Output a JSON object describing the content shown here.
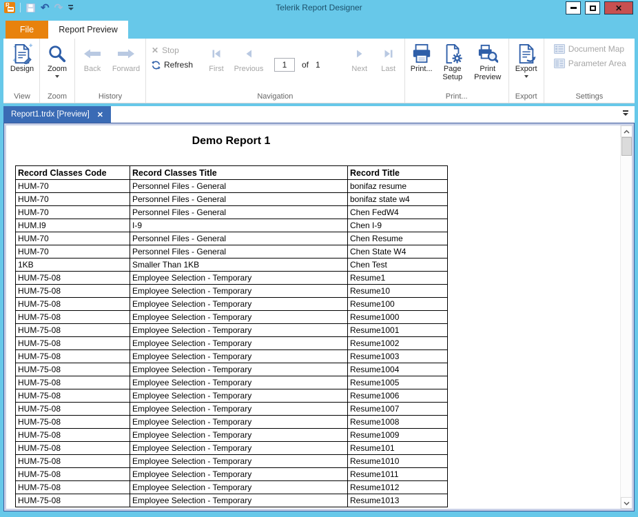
{
  "window": {
    "title": "Telerik Report Designer"
  },
  "icons": {
    "app_letter": "R",
    "undo": "↶",
    "redo": "↷",
    "close": "✕",
    "stop_x": "✕",
    "tab_close": "✕",
    "minimize": "css-bar",
    "maximize": "css-box",
    "qat_customize": "css-triangle-down",
    "tabstrip_options": "css-triangle-down"
  },
  "ribbon": {
    "tabs": {
      "file": "File",
      "report_preview": "Report Preview"
    },
    "view": {
      "design": "Design",
      "group": "View"
    },
    "zoom": {
      "zoom": "Zoom",
      "group": "Zoom"
    },
    "history": {
      "back": "Back",
      "forward": "Forward",
      "group": "History"
    },
    "navigation": {
      "stop": "Stop",
      "refresh": "Refresh",
      "first": "First",
      "previous": "Previous",
      "page_value": "1",
      "of": "of",
      "total_pages": "1",
      "next": "Next",
      "last": "Last",
      "group": "Navigation"
    },
    "print": {
      "print": "Print...",
      "page_setup": "Page Setup",
      "print_preview": "Print Preview",
      "group": "Print..."
    },
    "export": {
      "export": "Export",
      "group": "Export"
    },
    "settings": {
      "document_map": "Document Map",
      "parameter_area": "Parameter Area",
      "group": "Settings"
    }
  },
  "document_tab": {
    "label": "Report1.trdx [Preview]"
  },
  "report": {
    "title": "Demo Report 1",
    "table": {
      "headers": [
        "Record Classes Code",
        "Record Classes Title",
        "Record Title"
      ],
      "rows": [
        [
          "HUM-70",
          "Personnel Files - General",
          "bonifaz resume"
        ],
        [
          "HUM-70",
          "Personnel Files - General",
          "bonifaz state w4"
        ],
        [
          "HUM-70",
          "Personnel Files - General",
          "Chen FedW4"
        ],
        [
          "HUM.I9",
          "I-9",
          "Chen I-9"
        ],
        [
          "HUM-70",
          "Personnel Files - General",
          "Chen Resume"
        ],
        [
          "HUM-70",
          "Personnel Files - General",
          "Chen State W4"
        ],
        [
          "1KB",
          "Smaller Than 1KB",
          "Chen Test"
        ],
        [
          "HUM-75-08",
          "Employee Selection - Temporary",
          "Resume1"
        ],
        [
          "HUM-75-08",
          "Employee Selection - Temporary",
          "Resume10"
        ],
        [
          "HUM-75-08",
          "Employee Selection - Temporary",
          "Resume100"
        ],
        [
          "HUM-75-08",
          "Employee Selection - Temporary",
          "Resume1000"
        ],
        [
          "HUM-75-08",
          "Employee Selection - Temporary",
          "Resume1001"
        ],
        [
          "HUM-75-08",
          "Employee Selection - Temporary",
          "Resume1002"
        ],
        [
          "HUM-75-08",
          "Employee Selection - Temporary",
          "Resume1003"
        ],
        [
          "HUM-75-08",
          "Employee Selection - Temporary",
          "Resume1004"
        ],
        [
          "HUM-75-08",
          "Employee Selection - Temporary",
          "Resume1005"
        ],
        [
          "HUM-75-08",
          "Employee Selection - Temporary",
          "Resume1006"
        ],
        [
          "HUM-75-08",
          "Employee Selection - Temporary",
          "Resume1007"
        ],
        [
          "HUM-75-08",
          "Employee Selection - Temporary",
          "Resume1008"
        ],
        [
          "HUM-75-08",
          "Employee Selection - Temporary",
          "Resume1009"
        ],
        [
          "HUM-75-08",
          "Employee Selection - Temporary",
          "Resume101"
        ],
        [
          "HUM-75-08",
          "Employee Selection - Temporary",
          "Resume1010"
        ],
        [
          "HUM-75-08",
          "Employee Selection - Temporary",
          "Resume1011"
        ],
        [
          "HUM-75-08",
          "Employee Selection - Temporary",
          "Resume1012"
        ],
        [
          "HUM-75-08",
          "Employee Selection - Temporary",
          "Resume1013"
        ]
      ]
    }
  },
  "colors": {
    "titlebar": "#67C8E9",
    "accent_orange": "#E8820D",
    "doc_tab_blue": "#3A6BB5",
    "icon_blue": "#2E5EA8",
    "disabled_icon": "#B9C9E2",
    "close_red": "#C75050",
    "frame_lavender": "#C9D1E8",
    "frame_border": "#3C5C9E"
  }
}
